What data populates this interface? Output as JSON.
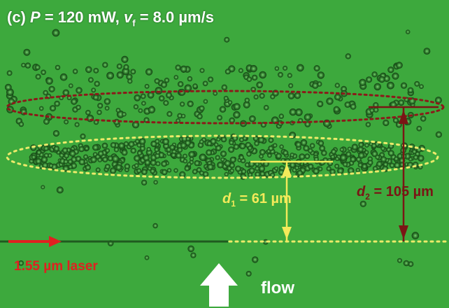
{
  "panel": {
    "tag": "(c)",
    "power_symbol": "P",
    "power_eq": " = 120 mW, ",
    "vel_symbol": "v",
    "vel_sub": "f",
    "vel_eq": " = 8.0 µm/s"
  },
  "annotations": {
    "d1": {
      "symbol": "d",
      "sub": "1",
      "eq": " = 61 µm"
    },
    "d2": {
      "symbol": "d",
      "sub": "2",
      "eq": " = 105 µm"
    },
    "laser": "1.55 µm laser",
    "flow": "flow"
  },
  "colors": {
    "background": "#3da93d",
    "upper_ellipse": "#8b1a1a",
    "lower_ellipse": "#ecea6a",
    "laser_arrow": "#e02020",
    "d1_marker": "#f3ea5a",
    "d2_marker": "#7a1515",
    "flow_arrow": "#ffffff"
  }
}
